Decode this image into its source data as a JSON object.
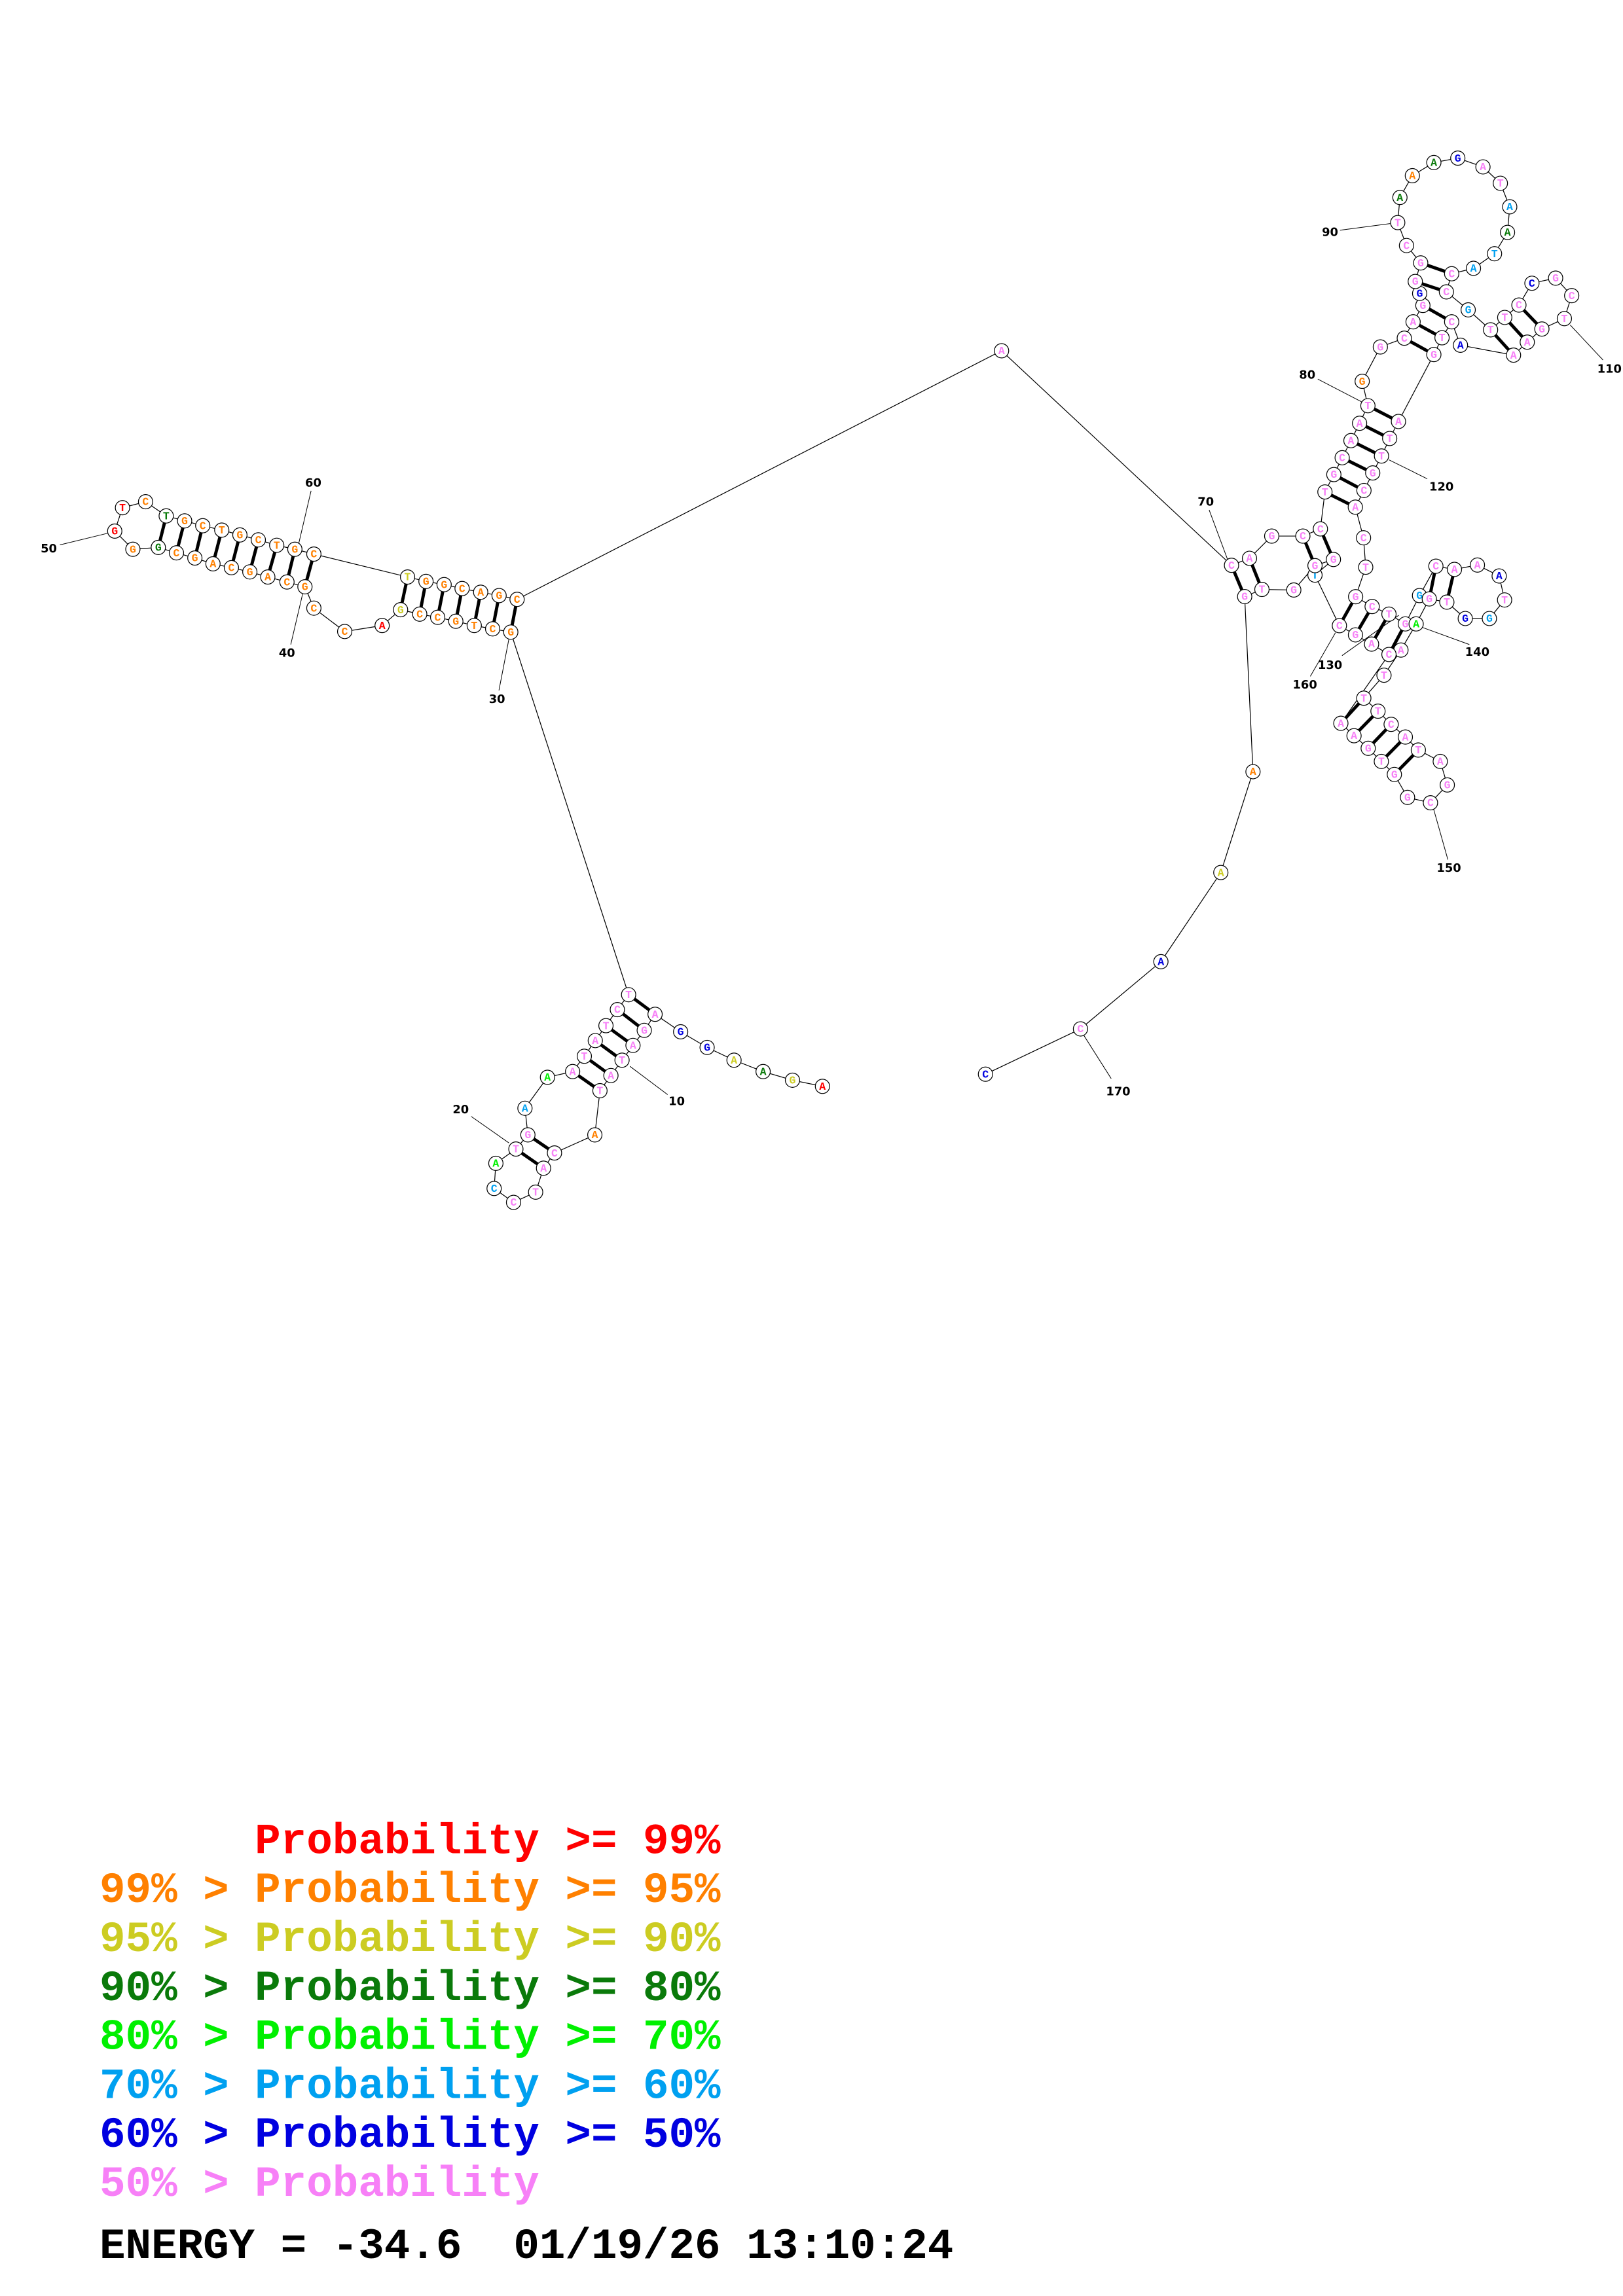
{
  "colors": {
    "p99": "#ff0000",
    "p95": "#ff8000",
    "p90": "#cccc22",
    "p80": "#0a7a0a",
    "p70": "#00f000",
    "p60": "#00a0f0",
    "p50": "#0000e0",
    "p0": "#f780f7"
  },
  "sequence": [
    "A",
    "G",
    "A",
    "A",
    "G",
    "G",
    "A",
    "G",
    "A",
    "T",
    "A",
    "T",
    "A",
    "C",
    "A",
    "T",
    "C",
    "C",
    "A",
    "T",
    "G",
    "A",
    "A",
    "A",
    "T",
    "A",
    "T",
    "C",
    "T",
    "G",
    "C",
    "T",
    "G",
    "C",
    "C",
    "G",
    "A",
    "C",
    "C",
    "G",
    "C",
    "A",
    "G",
    "C",
    "A",
    "G",
    "C",
    "G",
    "G",
    "G",
    "T",
    "C",
    "T",
    "G",
    "C",
    "T",
    "G",
    "C",
    "T",
    "G",
    "C",
    "T",
    "G",
    "G",
    "C",
    "A",
    "G",
    "C",
    "A",
    "C",
    "A",
    "G",
    "C",
    "C",
    "T",
    "G",
    "C",
    "A",
    "A",
    "T",
    "G",
    "G",
    "C",
    "A",
    "G",
    "G",
    "G",
    "G",
    "C",
    "T",
    "A",
    "A",
    "A",
    "G",
    "A",
    "T",
    "A",
    "A",
    "T",
    "A",
    "C",
    "C",
    "G",
    "T",
    "T",
    "C",
    "C",
    "G",
    "C",
    "T",
    "G",
    "A",
    "A",
    "A",
    "C",
    "T",
    "G",
    "A",
    "T",
    "T",
    "G",
    "C",
    "A",
    "C",
    "T",
    "G",
    "C",
    "T",
    "G",
    "G",
    "C",
    "A",
    "A",
    "A",
    "T",
    "G",
    "G",
    "T",
    "G",
    "A",
    "A",
    "T",
    "T",
    "T",
    "C",
    "A",
    "T",
    "A",
    "G",
    "C",
    "G",
    "G",
    "T",
    "G",
    "A",
    "A",
    "C",
    "A",
    "G",
    "C",
    "T",
    "G",
    "G",
    "G",
    "T",
    "G",
    "A",
    "A",
    "A",
    "C",
    "C"
  ],
  "probability_class": [
    "p99",
    "p90",
    "p80",
    "p90",
    "p50",
    "p50",
    "p0",
    "p0",
    "p0",
    "p0",
    "p0",
    "p0",
    "p95",
    "p0",
    "p0",
    "p0",
    "p0",
    "p60",
    "p70",
    "p0",
    "p0",
    "p60",
    "p70",
    "p0",
    "p0",
    "p0",
    "p0",
    "p0",
    "p0",
    "p95",
    "p95",
    "p95",
    "p95",
    "p95",
    "p95",
    "p90",
    "p99",
    "p95",
    "p95",
    "p95",
    "p95",
    "p95",
    "p95",
    "p95",
    "p95",
    "p95",
    "p95",
    "p80",
    "p95",
    "p99",
    "p99",
    "p95",
    "p80",
    "p95",
    "p95",
    "p95",
    "p95",
    "p95",
    "p95",
    "p95",
    "p95",
    "p90",
    "p95",
    "p95",
    "p95",
    "p95",
    "p95",
    "p95",
    "p0",
    "p0",
    "p0",
    "p0",
    "p0",
    "p0",
    "p0",
    "p0",
    "p0",
    "p0",
    "p0",
    "p0",
    "p95",
    "p0",
    "p0",
    "p0",
    "p0",
    "p50",
    "p0",
    "p0",
    "p0",
    "p0",
    "p80",
    "p95",
    "p80",
    "p50",
    "p0",
    "p0",
    "p60",
    "p80",
    "p60",
    "p60",
    "p0",
    "p0",
    "p60",
    "p0",
    "p0",
    "p0",
    "p50",
    "p0",
    "p0",
    "p0",
    "p0",
    "p0",
    "p0",
    "p50",
    "p0",
    "p0",
    "p0",
    "p0",
    "p0",
    "p0",
    "p0",
    "p0",
    "p0",
    "p0",
    "p0",
    "p0",
    "p0",
    "p0",
    "p0",
    "p60",
    "p0",
    "p0",
    "p0",
    "p50",
    "p0",
    "p60",
    "p50",
    "p0",
    "p0",
    "p70",
    "p0",
    "p0",
    "p0",
    "p0",
    "p0",
    "p0",
    "p0",
    "p0",
    "p0",
    "p0",
    "p0",
    "p0",
    "p0",
    "p0",
    "p0",
    "p0",
    "p0",
    "p0",
    "p0",
    "p0",
    "p60",
    "p0",
    "p0",
    "p0",
    "p0",
    "p0",
    "p95",
    "p90",
    "p50",
    "p0",
    "p50"
  ],
  "base_pairs": [
    [
      7,
      29
    ],
    [
      8,
      28
    ],
    [
      9,
      27
    ],
    [
      10,
      26
    ],
    [
      11,
      25
    ],
    [
      12,
      24
    ],
    [
      14,
      21
    ],
    [
      15,
      20
    ],
    [
      30,
      68
    ],
    [
      31,
      67
    ],
    [
      32,
      66
    ],
    [
      33,
      65
    ],
    [
      34,
      64
    ],
    [
      35,
      63
    ],
    [
      36,
      62
    ],
    [
      40,
      61
    ],
    [
      41,
      60
    ],
    [
      42,
      59
    ],
    [
      43,
      58
    ],
    [
      44,
      57
    ],
    [
      45,
      56
    ],
    [
      46,
      55
    ],
    [
      47,
      54
    ],
    [
      48,
      53
    ],
    [
      70,
      166
    ],
    [
      71,
      165
    ],
    [
      73,
      163
    ],
    [
      74,
      162
    ],
    [
      75,
      123
    ],
    [
      76,
      122
    ],
    [
      77,
      121
    ],
    [
      78,
      120
    ],
    [
      79,
      119
    ],
    [
      80,
      118
    ],
    [
      83,
      117
    ],
    [
      84,
      116
    ],
    [
      85,
      115
    ],
    [
      87,
      102
    ],
    [
      88,
      101
    ],
    [
      104,
      113
    ],
    [
      105,
      112
    ],
    [
      106,
      111
    ],
    [
      126,
      160
    ],
    [
      127,
      159
    ],
    [
      128,
      158
    ],
    [
      129,
      157
    ],
    [
      131,
      139
    ],
    [
      132,
      138
    ],
    [
      143,
      156
    ],
    [
      144,
      155
    ],
    [
      145,
      154
    ],
    [
      146,
      153
    ],
    [
      147,
      152
    ]
  ],
  "position_labels": [
    "10",
    "20",
    "30",
    "40",
    "50",
    "60",
    "70",
    "80",
    "90",
    "110",
    "120",
    "130",
    "140",
    "150",
    "160",
    "170"
  ],
  "legend": [
    {
      "text": "      Probability >= 99%",
      "color": "p99"
    },
    {
      "text": "99% > Probability >= 95%",
      "color": "p95"
    },
    {
      "text": "95% > Probability >= 90%",
      "color": "p90"
    },
    {
      "text": "90% > Probability >= 80%",
      "color": "p80"
    },
    {
      "text": "80% > Probability >= 70%",
      "color": "p70"
    },
    {
      "text": "70% > Probability >= 60%",
      "color": "p60"
    },
    {
      "text": "60% > Probability >= 50%",
      "color": "p50"
    },
    {
      "text": "50% > Probability",
      "color": "p0"
    }
  ],
  "footer": {
    "energy_line": "ENERGY = -34.6  01/19/26 13:10:24"
  }
}
